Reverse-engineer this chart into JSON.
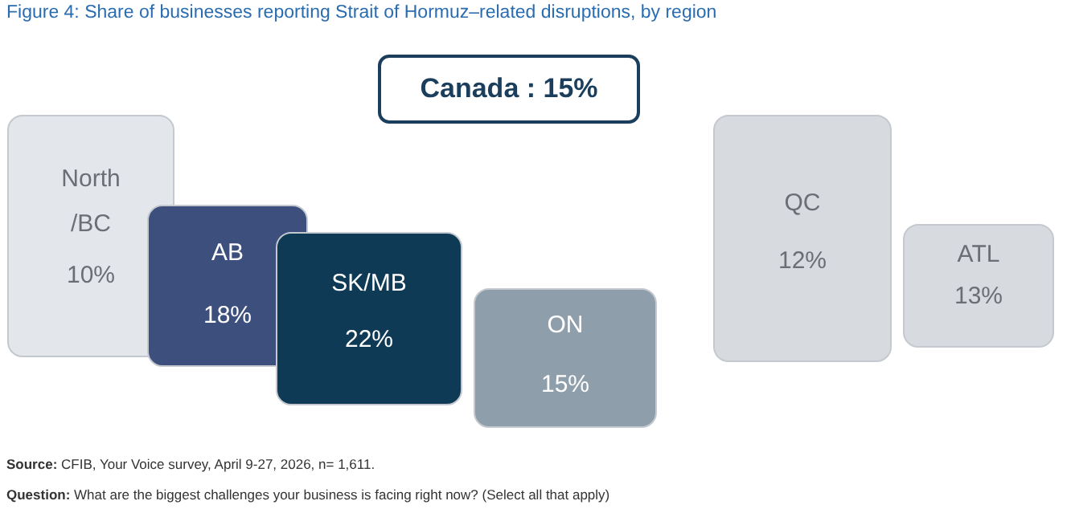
{
  "chart_data": {
    "type": "other",
    "title": "Figure 4: Share of businesses reporting Strait of Hormuz–related disruptions, by region",
    "categories": [
      "North /BC",
      "AB",
      "SK/MB",
      "ON",
      "QC",
      "ATL"
    ],
    "values": [
      10,
      18,
      22,
      15,
      12,
      13
    ],
    "value_labels": [
      "10%",
      "18%",
      "22%",
      "15%",
      "12%",
      "13%"
    ],
    "colors": [
      "#e3e6ea",
      "#3d4f7d",
      "#0e3a56",
      "#8f9eab",
      "#d7dbe0",
      "#d7dbe0"
    ],
    "annotations": [
      "Canada : 15%",
      "Source: CFIB, Your Voice survey, April 9-27, 2026, n= 1,611.",
      "Question: What are the biggest challenges your business is facing right now? (Select all that apply)"
    ]
  }
}
